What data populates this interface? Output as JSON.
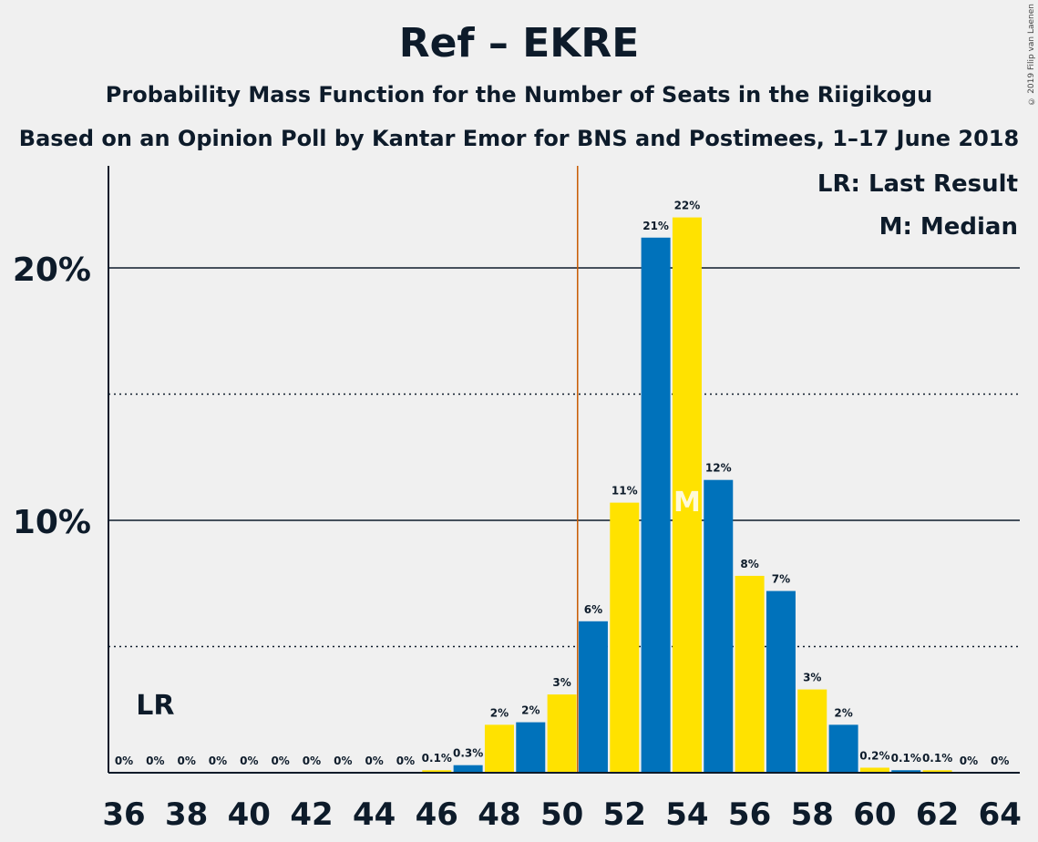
{
  "title": "Ref – EKRE",
  "subtitle": "Probability Mass Function for the Number of Seats in the Riigikogu",
  "subtitle2": "Based on an Opinion Poll by Kantar Emor for BNS and Postimees, 1–17 June 2018",
  "copyright": "© 2019 Filip van Laenen",
  "legend": {
    "last_result": "LR: Last Result",
    "median": "M: Median"
  },
  "markers": {
    "lr_label": "LR",
    "median_label": "M"
  },
  "colors": {
    "blue": "#0072bb",
    "yellow": "#ffe200",
    "lr_line": "#c85a00",
    "text": "#0d1b2a",
    "background": "#f0f0f0"
  },
  "chart_data": {
    "type": "bar",
    "x": [
      36,
      37,
      38,
      39,
      40,
      41,
      42,
      43,
      44,
      45,
      46,
      47,
      48,
      49,
      50,
      51,
      52,
      53,
      54,
      55,
      56,
      57,
      58,
      59,
      60,
      61,
      62,
      63,
      64
    ],
    "values": [
      0,
      0,
      0,
      0,
      0,
      0,
      0,
      0,
      0,
      0,
      0.1,
      0.3,
      1.9,
      2.0,
      3.1,
      6.0,
      10.7,
      21.2,
      22.0,
      11.6,
      7.8,
      7.2,
      3.3,
      1.9,
      0.2,
      0.1,
      0.1,
      0,
      0
    ],
    "labels": [
      "0%",
      "0%",
      "0%",
      "0%",
      "0%",
      "0%",
      "0%",
      "0%",
      "0%",
      "0%",
      "0.1%",
      "0.3%",
      "2%",
      "2%",
      "3%",
      "6%",
      "11%",
      "21%",
      "22%",
      "12%",
      "8%",
      "7%",
      "3%",
      "2%",
      "0.2%",
      "0.1%",
      "0.1%",
      "0%",
      "0%"
    ],
    "xticks": [
      "36",
      "38",
      "40",
      "42",
      "44",
      "46",
      "48",
      "50",
      "52",
      "54",
      "56",
      "58",
      "60",
      "62",
      "64"
    ],
    "yticks": [
      {
        "value": 10,
        "label": "10%"
      },
      {
        "value": 20,
        "label": "20%"
      }
    ],
    "dotted_gridlines": [
      5,
      15
    ],
    "ylim": [
      0,
      24
    ],
    "last_result_seat": 37,
    "median_seat": 54,
    "threshold_between": [
      50,
      51
    ]
  }
}
